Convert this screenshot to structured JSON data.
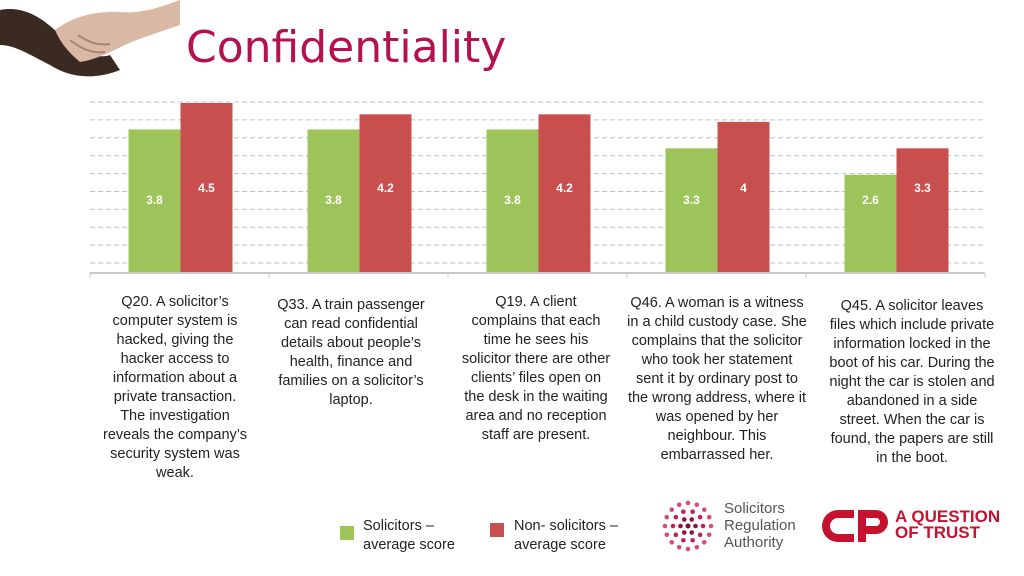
{
  "title": "Confidentiality",
  "colors": {
    "solicitors": "#9dc45a",
    "non_solicitors": "#c94f4f",
    "title": "#b3124e"
  },
  "chart_data": {
    "type": "bar",
    "categories": [
      "Q20. A solicitor’s computer system is hacked, giving the hacker access to information about a private transaction. The investigation reveals the company’s security system was weak.",
      "Q33. A train passenger can read confidential details about people’s health, finance and families on a solicitor’s laptop.",
      "Q19. A client complains that each time he sees his solicitor there are other clients’ files open on the desk in the waiting area and no reception staff are present.",
      "Q46. A woman is a witness in a child custody case. She complains that the solicitor who took her statement sent it by ordinary post to the wrong address, where it was opened by her neighbour. This embarrassed her.",
      "Q45. A solicitor leaves files which include private information locked in the boot of his car. During the night the car is stolen and abandoned in a side street. When the car is found, the papers are still in the boot."
    ],
    "series": [
      {
        "name": "Solicitors – average score",
        "values": [
          3.8,
          3.8,
          3.8,
          3.3,
          2.6
        ],
        "labels": [
          "3.8",
          "3.8",
          "3.8",
          "3.3",
          "2.6"
        ]
      },
      {
        "name": "Non- solicitors – average score",
        "values": [
          4.5,
          4.2,
          4.2,
          4,
          3.3
        ],
        "labels": [
          "4.5",
          "4.2",
          "4.2",
          "4",
          "3.3"
        ]
      }
    ],
    "ylim": [
      0,
      4.5
    ],
    "grid": true,
    "legend_position": "bottom"
  },
  "legend": {
    "solicitors_line1": "Solicitors –",
    "solicitors_line2": "average score",
    "non_solicitors_line1": "Non- solicitors –",
    "non_solicitors_line2": "average score"
  },
  "logos": {
    "sra_line1": "Solicitors",
    "sra_line2": "Regulation",
    "sra_line3": "Authority",
    "aqt_line1": "A QUESTION",
    "aqt_line2": "OF TRUST"
  }
}
